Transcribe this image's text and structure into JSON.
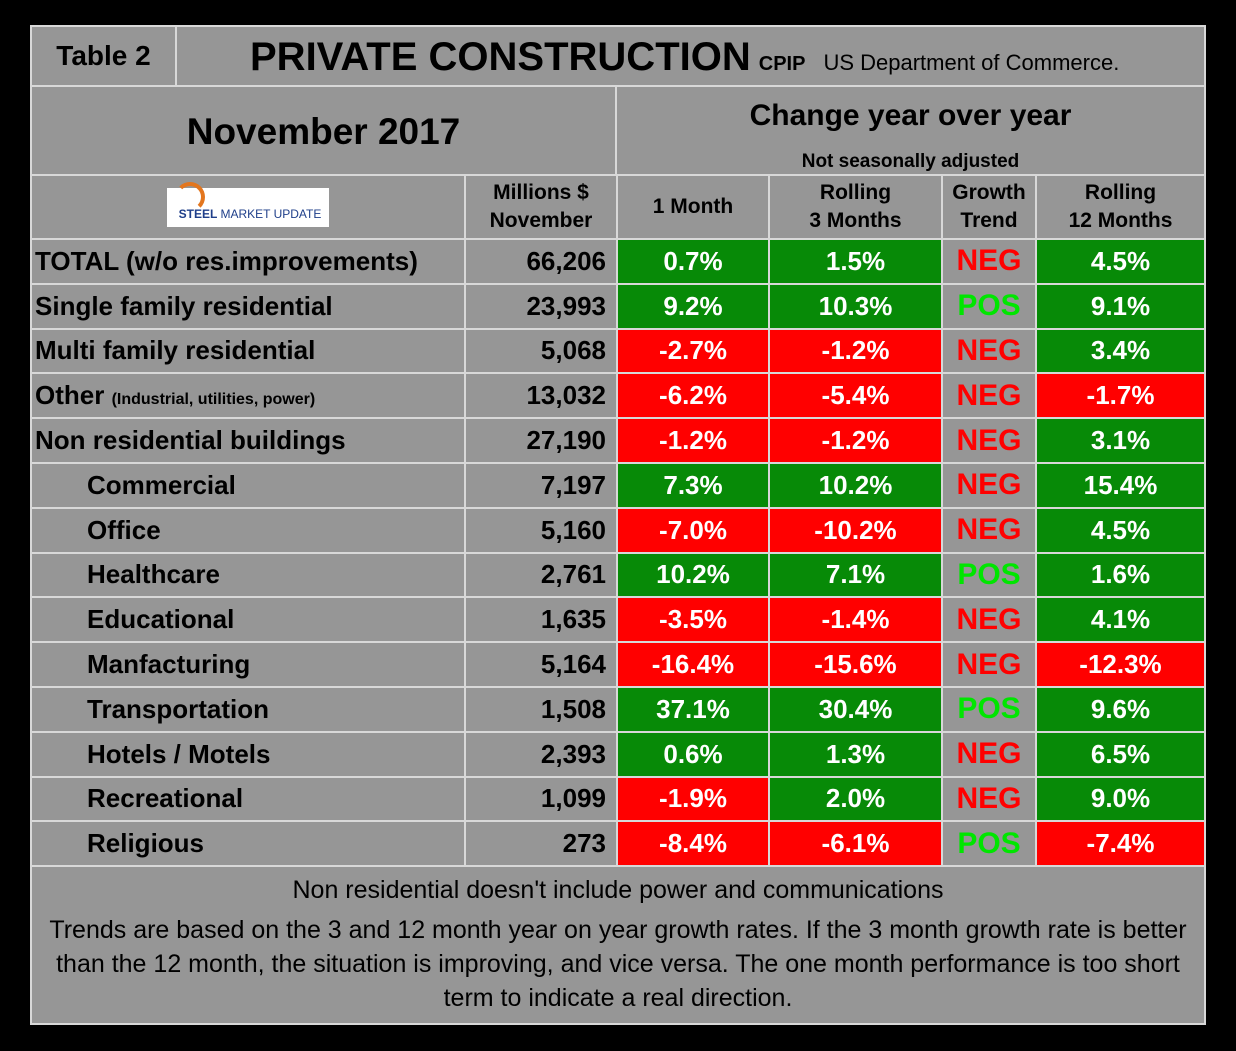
{
  "header": {
    "table_label": "Table 2",
    "title": "PRIVATE CONSTRUCTION",
    "code": "CPIP",
    "source": "US Department of Commerce."
  },
  "period": "November 2017",
  "change_title": "Change year over year",
  "change_note": "Not seasonally adjusted",
  "logo": {
    "word1": "STEEL",
    "word2": "MARKET UPDATE"
  },
  "table": {
    "columns": [
      [
        "Millions $",
        "November"
      ],
      [
        "1 Month"
      ],
      [
        "Rolling",
        "3 Months"
      ],
      [
        "Growth",
        "Trend"
      ],
      [
        "Rolling",
        "12 Months"
      ]
    ],
    "rows": [
      {
        "label": "TOTAL (w/o res.improvements)",
        "cells": [
          "66,206",
          "0.7%",
          "1.5%",
          "NEG",
          "4.5%"
        ]
      },
      {
        "label": "Single family residential",
        "cells": [
          "23,993",
          "9.2%",
          "10.3%",
          "POS",
          "9.1%"
        ]
      },
      {
        "label": "Multi family residential",
        "cells": [
          "5,068",
          "-2.7%",
          "-1.2%",
          "NEG",
          "3.4%"
        ]
      },
      {
        "label": "Other",
        "note": "(Industrial, utilities, power)",
        "cells": [
          "13,032",
          "-6.2%",
          "-5.4%",
          "NEG",
          "-1.7%"
        ]
      },
      {
        "label": "Non residential buildings",
        "cells": [
          "27,190",
          "-1.2%",
          "-1.2%",
          "NEG",
          "3.1%"
        ]
      },
      {
        "label": "Commercial",
        "cells": [
          "7,197",
          "7.3%",
          "10.2%",
          "NEG",
          "15.4%"
        ]
      },
      {
        "label": "Office",
        "cells": [
          "5,160",
          "-7.0%",
          "-10.2%",
          "NEG",
          "4.5%"
        ]
      },
      {
        "label": "Healthcare",
        "cells": [
          "2,761",
          "10.2%",
          "7.1%",
          "POS",
          "1.6%"
        ]
      },
      {
        "label": "Educational",
        "cells": [
          "1,635",
          "-3.5%",
          "-1.4%",
          "NEG",
          "4.1%"
        ]
      },
      {
        "label": "Manfacturing",
        "cells": [
          "5,164",
          "-16.4%",
          "-15.6%",
          "NEG",
          "-12.3%"
        ]
      },
      {
        "label": "Transportation",
        "cells": [
          "1,508",
          "37.1%",
          "30.4%",
          "POS",
          "9.6%"
        ]
      },
      {
        "label": "Hotels / Motels",
        "cells": [
          "2,393",
          "0.6%",
          "1.3%",
          "NEG",
          "6.5%"
        ]
      },
      {
        "label": "Recreational",
        "cells": [
          "1,099",
          "-1.9%",
          "2.0%",
          "NEG",
          "9.0%"
        ]
      },
      {
        "label": "Religious",
        "cells": [
          "273",
          "-8.4%",
          "-6.1%",
          "POS",
          "-7.4%"
        ]
      }
    ]
  },
  "footer": {
    "note": "Non residential doesn't include power and communications",
    "text": "Trends are based on the 3 and 12 month year on year growth rates. If the 3 month growth rate is better than the 12 month, the situation is improving, and vice versa. The one month performance is too short term to indicate a real direction."
  }
}
